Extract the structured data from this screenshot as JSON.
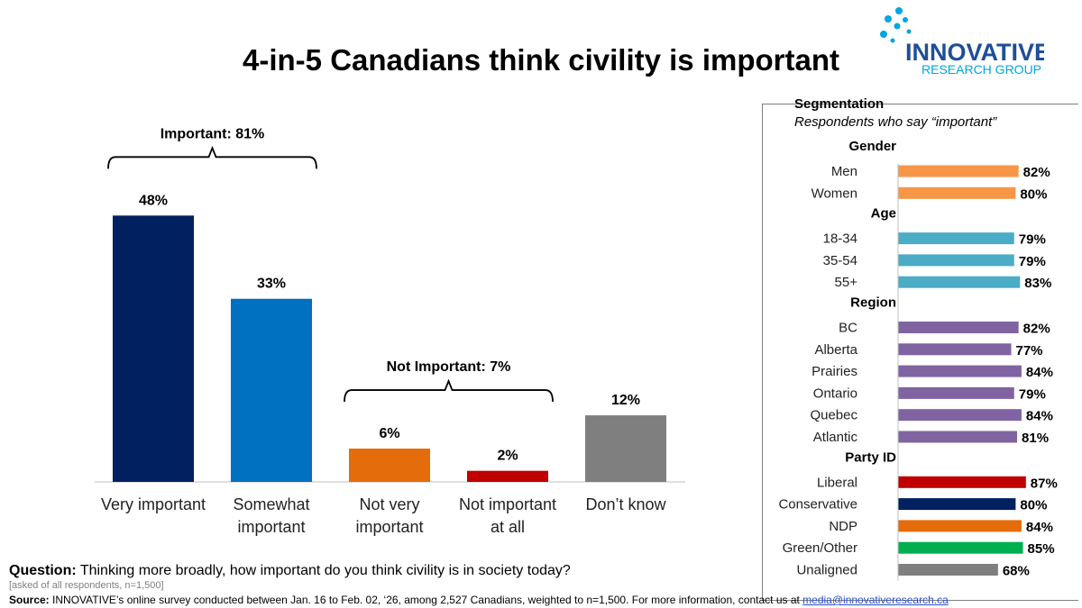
{
  "title": "4-in-5 Canadians think civility is important",
  "logo": {
    "name": "INNOVATIVE",
    "subname": "RESEARCH GROUP"
  },
  "chart_data": [
    {
      "type": "bar",
      "categories": [
        "Very important",
        "Somewhat important",
        "Not very important",
        "Not important at all",
        "Don’t know"
      ],
      "category_lines": [
        [
          "Very important"
        ],
        [
          "Somewhat",
          "important"
        ],
        [
          "Not very",
          "important"
        ],
        [
          "Not important",
          "at all"
        ],
        [
          "Don’t know"
        ]
      ],
      "values": [
        48,
        33,
        6,
        2,
        12
      ],
      "value_labels": [
        "48%",
        "33%",
        "6%",
        "2%",
        "12%"
      ],
      "colors": [
        "#002060",
        "#0070c0",
        "#e46c0a",
        "#c00000",
        "#7f7f7f"
      ],
      "ylim": [
        0,
        50
      ],
      "annotations": [
        {
          "label": "Important: 81%",
          "from": 0,
          "to": 1
        },
        {
          "label": "Not Important: 7%",
          "from": 2,
          "to": 3
        }
      ]
    },
    {
      "type": "bar",
      "orientation": "horizontal",
      "title": "Segmentation",
      "subtitle": "Respondents who say “important”",
      "xlim": [
        0,
        100
      ],
      "groups": [
        {
          "name": "Gender",
          "color": "#f79646",
          "items": [
            {
              "label": "Men",
              "value": 82,
              "value_label": "82%"
            },
            {
              "label": "Women",
              "value": 80,
              "value_label": "80%"
            }
          ]
        },
        {
          "name": "Age",
          "color": "#4bacc6",
          "items": [
            {
              "label": "18-34",
              "value": 79,
              "value_label": "79%"
            },
            {
              "label": "35-54",
              "value": 79,
              "value_label": "79%"
            },
            {
              "label": "55+",
              "value": 83,
              "value_label": "83%"
            }
          ]
        },
        {
          "name": "Region",
          "color": "#8064a2",
          "items": [
            {
              "label": "BC",
              "value": 82,
              "value_label": "82%"
            },
            {
              "label": "Alberta",
              "value": 77,
              "value_label": "77%"
            },
            {
              "label": "Prairies",
              "value": 84,
              "value_label": "84%"
            },
            {
              "label": "Ontario",
              "value": 79,
              "value_label": "79%"
            },
            {
              "label": "Quebec",
              "value": 84,
              "value_label": "84%"
            },
            {
              "label": "Atlantic",
              "value": 81,
              "value_label": "81%"
            }
          ]
        },
        {
          "name": "Party ID",
          "items": [
            {
              "label": "Liberal",
              "value": 87,
              "value_label": "87%",
              "color": "#c00000"
            },
            {
              "label": "Conservative",
              "value": 80,
              "value_label": "80%",
              "color": "#002060"
            },
            {
              "label": "NDP",
              "value": 84,
              "value_label": "84%",
              "color": "#e46c0a"
            },
            {
              "label": "Green/Other",
              "value": 85,
              "value_label": "85%",
              "color": "#00b050"
            },
            {
              "label": "Unaligned",
              "value": 68,
              "value_label": "68%",
              "color": "#7f7f7f"
            }
          ]
        }
      ]
    }
  ],
  "footer": {
    "question_label": "Question:",
    "question_text": " Thinking more broadly, how important do you think civility is in society today?",
    "asked": "[asked of all respondents, n=1,500]",
    "source_label": "Source:",
    "source_text": " INNOVATIVE’s online survey conducted between Jan. 16 to Feb. 02, ‘26, among 2,527 Canadians, weighted to n=1,500. For more information, contact us at ",
    "source_link": "media@innovativeresearch.ca"
  }
}
